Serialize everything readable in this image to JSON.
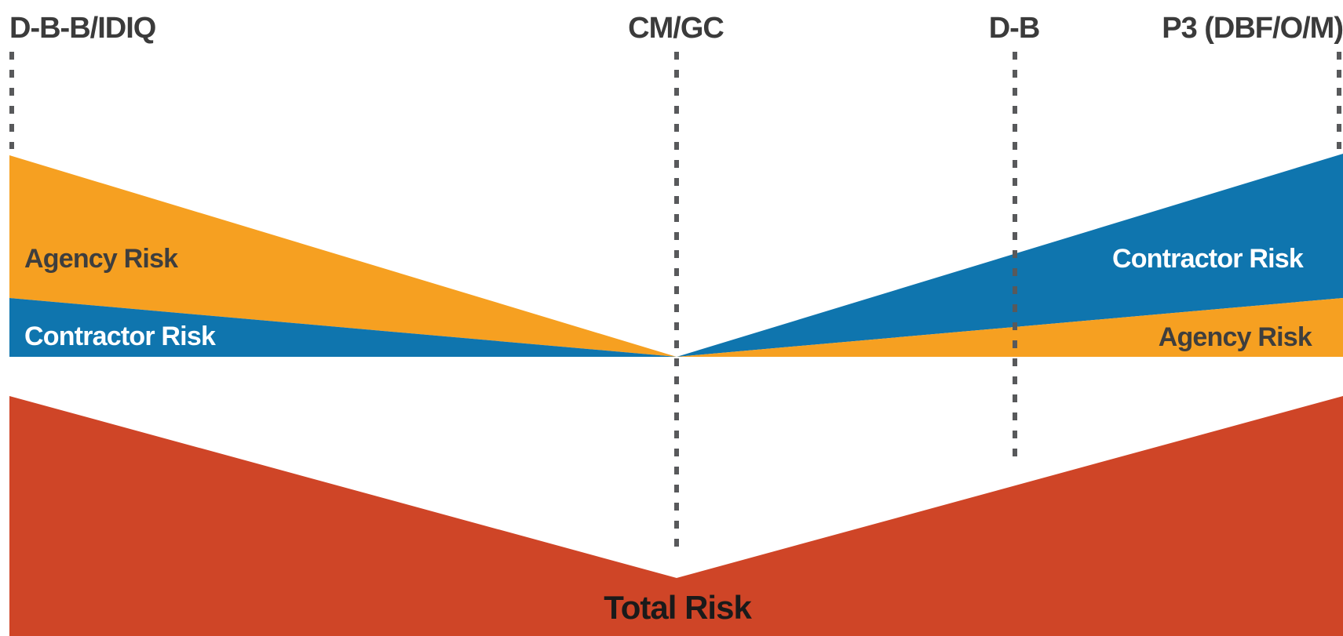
{
  "methods": {
    "dbb": "D-B-B/IDIQ",
    "cmgc": "CM/GC",
    "db": "D-B",
    "p3": "P3 (DBF/O/M)"
  },
  "left_panel": {
    "agency_label": "Agency Risk",
    "contractor_label": "Contractor Risk"
  },
  "right_panel": {
    "contractor_label": "Contractor Risk",
    "agency_label": "Agency Risk"
  },
  "total": {
    "label": "Total Risk"
  },
  "colors": {
    "agency": "#f6a021",
    "contractor": "#0f75ae",
    "total": "#cf4527",
    "divider": "#58595b"
  }
}
